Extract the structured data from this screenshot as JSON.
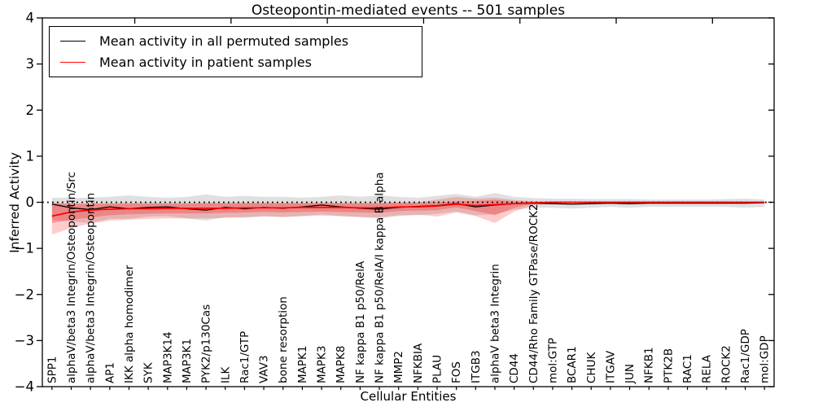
{
  "figure": {
    "title": "Osteopontin-mediated events -- 501 samples",
    "xlabel": "Cellular Entities",
    "ylabel": "Inferred Activity"
  },
  "legend": {
    "items": [
      {
        "label": "Mean activity in all permuted samples",
        "color": "#000000"
      },
      {
        "label": "Mean activity in patient samples",
        "color": "#ff0000"
      }
    ]
  },
  "chart_data": {
    "type": "line",
    "title": "Osteopontin-mediated events -- 501 samples",
    "xlabel": "Cellular Entities",
    "ylabel": "Inferred Activity",
    "ylim": [
      -4,
      4
    ],
    "yticks": [
      -4,
      -3,
      -2,
      -1,
      0,
      1,
      2,
      3,
      4
    ],
    "grid": false,
    "legend_position": "upper left",
    "zero_line": {
      "y": 0,
      "style": "dotted",
      "color": "#000000"
    },
    "categories": [
      "SPP1",
      "alphaV/beta3 Integrin/Osteopontin/Src",
      "alphaV/beta3 Integrin/Osteopontin",
      "AP1",
      "IKK alpha homodimer",
      "SYK",
      "MAP3K14",
      "MAP3K1",
      "PYK2/p130Cas",
      "ILK",
      "Rac1/GTP",
      "VAV3",
      "bone resorption",
      "MAPK1",
      "MAPK3",
      "MAPK8",
      "NF kappa B1 p50/RelA",
      "NF kappa B1 p50/RelA/I kappa B alpha",
      "MMP2",
      "NFKBIA",
      "PLAU",
      "FOS",
      "ITGB3",
      "alphaV beta3 Integrin",
      "CD44",
      "CD44/Rho Family GTPase/ROCK2",
      "mol:GTP",
      "BCAR1",
      "CHUK",
      "ITGAV",
      "JUN",
      "NFKB1",
      "PTK2B",
      "RAC1",
      "RELA",
      "ROCK2",
      "Rac1/GDP",
      "mol:GDP"
    ],
    "series": [
      {
        "name": "Mean activity in all permuted samples",
        "color": "#000000",
        "line_width": 1.3,
        "values": [
          -0.04,
          -0.12,
          -0.16,
          -0.1,
          -0.14,
          -0.11,
          -0.1,
          -0.14,
          -0.17,
          -0.11,
          -0.14,
          -0.11,
          -0.13,
          -0.1,
          -0.06,
          -0.1,
          -0.13,
          -0.15,
          -0.11,
          -0.09,
          -0.07,
          -0.03,
          -0.1,
          -0.06,
          -0.03,
          -0.02,
          -0.03,
          -0.04,
          -0.03,
          -0.02,
          -0.03,
          -0.02,
          -0.02,
          -0.02,
          -0.02,
          -0.02,
          -0.02,
          -0.01
        ],
        "bands": [
          {
            "name": "permuted-range",
            "fill": "#000000",
            "opacity": 0.12,
            "low": [
              -0.38,
              -0.42,
              -0.45,
              -0.36,
              -0.36,
              -0.31,
              -0.3,
              -0.35,
              -0.4,
              -0.32,
              -0.34,
              -0.3,
              -0.32,
              -0.3,
              -0.26,
              -0.3,
              -0.32,
              -0.35,
              -0.3,
              -0.28,
              -0.25,
              -0.2,
              -0.28,
              -0.26,
              -0.16,
              -0.12,
              -0.12,
              -0.14,
              -0.12,
              -0.1,
              -0.12,
              -0.1,
              -0.1,
              -0.1,
              -0.1,
              -0.1,
              -0.12,
              -0.1
            ],
            "high": [
              0.1,
              0.1,
              0.1,
              0.12,
              0.15,
              0.12,
              0.1,
              0.12,
              0.17,
              0.12,
              0.14,
              0.12,
              0.12,
              0.1,
              0.12,
              0.15,
              0.12,
              0.15,
              0.12,
              0.1,
              0.14,
              0.18,
              0.12,
              0.2,
              0.12,
              0.09,
              0.08,
              0.08,
              0.07,
              0.07,
              0.07,
              0.06,
              0.06,
              0.06,
              0.06,
              0.07,
              0.08,
              0.06
            ]
          }
        ]
      },
      {
        "name": "Mean activity in patient samples",
        "color": "#ff0000",
        "line_width": 1.7,
        "values": [
          -0.3,
          -0.21,
          -0.17,
          -0.15,
          -0.14,
          -0.14,
          -0.13,
          -0.13,
          -0.13,
          -0.13,
          -0.12,
          -0.12,
          -0.12,
          -0.11,
          -0.11,
          -0.11,
          -0.12,
          -0.12,
          -0.1,
          -0.1,
          -0.08,
          -0.04,
          -0.07,
          -0.05,
          -0.03,
          -0.01,
          0.0,
          0.0,
          0.0,
          0.0,
          0.0,
          0.0,
          0.0,
          0.0,
          0.0,
          0.0,
          0.0,
          0.0
        ],
        "bands": [
          {
            "name": "patient-range-outer",
            "fill": "#ff0000",
            "opacity": 0.2,
            "low": [
              -0.7,
              -0.56,
              -0.46,
              -0.4,
              -0.38,
              -0.36,
              -0.35,
              -0.35,
              -0.35,
              -0.34,
              -0.32,
              -0.31,
              -0.32,
              -0.3,
              -0.29,
              -0.3,
              -0.32,
              -0.33,
              -0.28,
              -0.27,
              -0.31,
              -0.22,
              -0.3,
              -0.45,
              -0.2,
              -0.06,
              -0.03,
              -0.02,
              -0.02,
              -0.02,
              -0.02,
              -0.02,
              -0.02,
              -0.02,
              -0.02,
              -0.02,
              -0.02,
              -0.02
            ],
            "high": [
              -0.01,
              -0.02,
              -0.02,
              -0.02,
              -0.01,
              -0.01,
              -0.01,
              -0.01,
              -0.01,
              -0.01,
              -0.01,
              -0.01,
              -0.01,
              -0.01,
              -0.01,
              -0.01,
              -0.01,
              -0.01,
              0.0,
              0.0,
              0.06,
              0.12,
              0.08,
              0.1,
              0.05,
              0.02,
              0.01,
              0.01,
              0.01,
              0.01,
              0.01,
              0.01,
              0.01,
              0.01,
              0.01,
              0.01,
              0.01,
              0.01
            ]
          },
          {
            "name": "patient-range-inner",
            "fill": "#ff0000",
            "opacity": 0.25,
            "low": [
              -0.45,
              -0.38,
              -0.33,
              -0.28,
              -0.26,
              -0.25,
              -0.24,
              -0.24,
              -0.24,
              -0.23,
              -0.22,
              -0.21,
              -0.22,
              -0.21,
              -0.2,
              -0.21,
              -0.22,
              -0.23,
              -0.19,
              -0.18,
              -0.17,
              -0.11,
              -0.19,
              -0.28,
              -0.12,
              -0.03,
              -0.02,
              -0.01,
              -0.01,
              -0.01,
              -0.01,
              -0.01,
              -0.01,
              -0.01,
              -0.01,
              -0.01,
              -0.01,
              -0.01
            ],
            "high": [
              -0.02,
              -0.04,
              -0.04,
              -0.03,
              -0.03,
              -0.03,
              -0.03,
              -0.03,
              -0.02,
              -0.02,
              -0.02,
              -0.02,
              -0.02,
              -0.02,
              -0.02,
              -0.02,
              -0.02,
              -0.02,
              -0.01,
              -0.01,
              0.0,
              0.02,
              0.03,
              0.05,
              0.02,
              0.01,
              0.01,
              0.01,
              0.01,
              0.01,
              0.01,
              0.01,
              0.01,
              0.01,
              0.01,
              0.01,
              0.01,
              0.01
            ]
          }
        ]
      }
    ]
  }
}
